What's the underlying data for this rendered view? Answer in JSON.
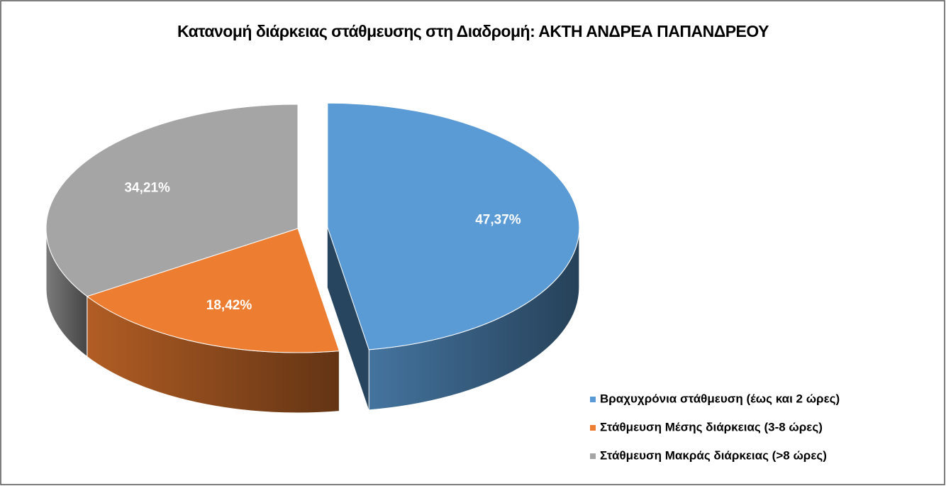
{
  "chart_data": {
    "type": "pie",
    "title": "Κατανομή διάρκειας στάθμευσης στη Διαδρομή: ΑΚΤΗ ΑΝΔΡΕΑ ΠΑΠΑΝΔΡΕΟΥ",
    "categories": [
      "Βραχυχρόνια στάθμευση (έως και 2 ώρες)",
      "Στάθμευση Μέσης διάρκειας (3-8 ώρες)",
      "Στάθμευση Μακράς διάρκειας (>8 ώρες)"
    ],
    "values": [
      47.37,
      18.42,
      34.21
    ],
    "value_labels": [
      "47,37%",
      "18,42%",
      "34,21%"
    ],
    "colors": [
      "#5b9bd5",
      "#ed7d31",
      "#a5a5a5"
    ],
    "legend": "bottom-right"
  }
}
